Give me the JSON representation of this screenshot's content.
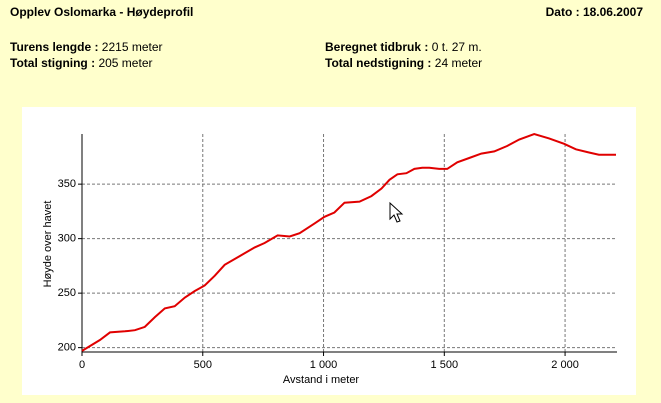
{
  "header": {
    "title": "Opplev Oslomarka - Høydeprofil",
    "date": "Dato : 18.06.2007"
  },
  "info": [
    {
      "label": "Turens lengde :",
      "value": "2215 meter"
    },
    {
      "label": "Beregnet tidbruk :",
      "value": "0 t. 27 m."
    },
    {
      "label": "Total stigning :",
      "value": "205 meter"
    },
    {
      "label": "Total nedstigning :",
      "value": "24 meter"
    }
  ],
  "chart_data": {
    "type": "line",
    "xlabel": "Avstand i meter",
    "ylabel": "Høyde over havet",
    "x": [
      0,
      74,
      116,
      178,
      219,
      260,
      302,
      343,
      384,
      426,
      467,
      508,
      550,
      591,
      653,
      715,
      756,
      810,
      860,
      901,
      963,
      1004,
      1045,
      1087,
      1149,
      1198,
      1240,
      1273,
      1306,
      1343,
      1376,
      1409,
      1438,
      1479,
      1512,
      1554,
      1603,
      1653,
      1707,
      1760,
      1810,
      1872,
      1934,
      1996,
      2045,
      2099,
      2140,
      2211
    ],
    "values": [
      197,
      207,
      214,
      215,
      216,
      219,
      228,
      236,
      238,
      246,
      252,
      257,
      266,
      276,
      284,
      292,
      296,
      303,
      302,
      305,
      314,
      320,
      324,
      333,
      334,
      339,
      346,
      354,
      359,
      360,
      364,
      365,
      365,
      364,
      364,
      370,
      374,
      378,
      380,
      385,
      391,
      396,
      392,
      387,
      382,
      379,
      377,
      377
    ],
    "color": "#e00000",
    "xlim": [
      0,
      2215
    ],
    "ylim": [
      196,
      396
    ],
    "xticks": [
      0,
      500,
      {
        "value": 1000,
        "label": "1 000"
      },
      {
        "value": 1500,
        "label": "1 500"
      },
      {
        "value": 2000,
        "label": "2 000"
      }
    ],
    "yticks": [
      200,
      250,
      300,
      350
    ],
    "grid": true
  }
}
